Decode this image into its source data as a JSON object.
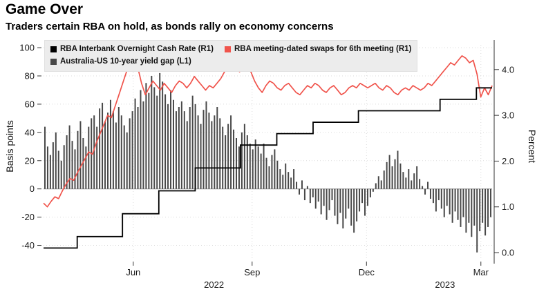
{
  "header": {
    "title": "Game Over",
    "subtitle": "Traders certain RBA on hold, as bonds rally on economy concerns"
  },
  "chart_data": {
    "type": "mixed",
    "left_axis": {
      "label": "Basis points",
      "ticks": [
        100,
        80,
        60,
        40,
        20,
        0,
        -20,
        -40
      ],
      "range": [
        -50,
        102
      ]
    },
    "right_axis": {
      "label": "Percent",
      "ticks": [
        "4.0",
        "3.0",
        "2.0",
        "1.0",
        "0.0"
      ],
      "tick_values": [
        4.0,
        3.0,
        2.0,
        1.0,
        0.0
      ],
      "range": [
        -0.15,
        4.54
      ]
    },
    "x_axis": {
      "month_ticks": [
        {
          "label": "Jun",
          "t": 0.2
        },
        {
          "label": "Sep",
          "t": 0.465
        },
        {
          "label": "Dec",
          "t": 0.72
        },
        {
          "label": "Mar",
          "t": 0.975
        }
      ],
      "year_labels": [
        {
          "label": "2022",
          "t": 0.38
        },
        {
          "label": "2023",
          "t": 0.895
        }
      ]
    },
    "series": [
      {
        "name": "RBA Interbank Overnight Cash Rate (R1)",
        "type": "step",
        "axis": "right",
        "color": "#000000",
        "points": [
          {
            "t": 0,
            "v": 0.1
          },
          {
            "t": 0.075,
            "v": 0.35
          },
          {
            "t": 0.176,
            "v": 0.85
          },
          {
            "t": 0.257,
            "v": 1.35
          },
          {
            "t": 0.338,
            "v": 1.85
          },
          {
            "t": 0.439,
            "v": 2.35
          },
          {
            "t": 0.52,
            "v": 2.6
          },
          {
            "t": 0.601,
            "v": 2.85
          },
          {
            "t": 0.702,
            "v": 3.1
          },
          {
            "t": 0.884,
            "v": 3.35
          },
          {
            "t": 0.965,
            "v": 3.6
          },
          {
            "t": 1,
            "v": 3.6
          }
        ]
      },
      {
        "name": "RBA meeting-dated swaps for 6th meeting (R1)",
        "type": "line",
        "axis": "right",
        "color": "#f0544c",
        "values": [
          1.08,
          1.0,
          1.12,
          1.22,
          1.18,
          1.35,
          1.5,
          1.62,
          1.58,
          1.75,
          1.9,
          2.05,
          2.2,
          2.15,
          2.4,
          2.6,
          2.8,
          3.0,
          2.95,
          3.2,
          3.45,
          3.7,
          3.95,
          4.15,
          4.25,
          4.05,
          3.7,
          3.45,
          3.6,
          3.75,
          3.65,
          3.55,
          3.7,
          3.6,
          3.5,
          3.65,
          3.75,
          3.7,
          3.6,
          3.7,
          3.85,
          3.75,
          3.65,
          3.55,
          3.65,
          3.6,
          3.7,
          3.8,
          3.95,
          4.1,
          4.15,
          4.05,
          3.95,
          4.05,
          4.1,
          3.95,
          3.75,
          3.6,
          3.5,
          3.65,
          3.75,
          3.7,
          3.6,
          3.55,
          3.65,
          3.7,
          3.6,
          3.5,
          3.45,
          3.55,
          3.65,
          3.6,
          3.7,
          3.65,
          3.55,
          3.5,
          3.6,
          3.65,
          3.55,
          3.45,
          3.5,
          3.6,
          3.65,
          3.6,
          3.7,
          3.65,
          3.6,
          3.65,
          3.7,
          3.6,
          3.55,
          3.65,
          3.6,
          3.5,
          3.45,
          3.55,
          3.6,
          3.55,
          3.65,
          3.6,
          3.55,
          3.6,
          3.7,
          3.65,
          3.75,
          3.85,
          3.95,
          4.05,
          4.15,
          4.1,
          4.2,
          4.3,
          4.25,
          4.15,
          4.2,
          3.9,
          3.4,
          3.6,
          3.45,
          3.65
        ]
      },
      {
        "name": "Australia-US 10-year yield gap (L1)",
        "type": "bar",
        "axis": "left",
        "color": "#484848",
        "values": [
          44,
          30,
          24,
          33,
          40,
          27,
          20,
          31,
          38,
          45,
          34,
          28,
          41,
          48,
          36,
          30,
          44,
          50,
          52,
          44,
          57,
          61,
          48,
          54,
          63,
          55,
          47,
          58,
          52,
          45,
          40,
          50,
          55,
          64,
          58,
          70,
          62,
          75,
          68,
          80,
          72,
          66,
          82,
          76,
          67,
          60,
          70,
          63,
          55,
          58,
          62,
          55,
          48,
          58,
          66,
          60,
          52,
          46,
          56,
          62,
          54,
          48,
          52,
          58,
          50,
          44,
          38,
          46,
          52,
          42,
          36,
          30,
          40,
          46,
          38,
          32,
          28,
          35,
          30,
          25,
          32,
          22,
          16,
          24,
          28,
          20,
          14,
          10,
          18,
          12,
          8,
          14,
          5,
          -4,
          6,
          -8,
          2,
          -10,
          -6,
          -14,
          -9,
          -18,
          -12,
          -22,
          -15,
          -8,
          -19,
          -25,
          -17,
          -28,
          -21,
          -14,
          -26,
          -31,
          -23,
          -16,
          -10,
          -19,
          -12,
          -6,
          -2,
          4,
          9,
          6,
          13,
          19,
          24,
          16,
          21,
          27,
          18,
          12,
          8,
          14,
          6,
          11,
          16,
          7,
          2,
          -4,
          5,
          -7,
          -10,
          -16,
          -8,
          -14,
          -20,
          -12,
          -18,
          -24,
          -16,
          -22,
          -27,
          -20,
          -31,
          -24,
          -34,
          -26,
          -45,
          -30,
          -24,
          -33,
          -27,
          -20
        ]
      }
    ]
  }
}
